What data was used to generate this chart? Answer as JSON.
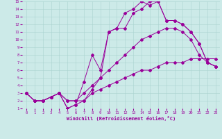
{
  "xlabel": "Windchill (Refroidissement éolien,°C)",
  "xlim": [
    -0.5,
    23.5
  ],
  "ylim": [
    1,
    15
  ],
  "xticks": [
    0,
    1,
    2,
    3,
    4,
    5,
    6,
    7,
    8,
    9,
    10,
    11,
    12,
    13,
    14,
    15,
    16,
    17,
    18,
    19,
    20,
    21,
    22,
    23
  ],
  "yticks": [
    1,
    2,
    3,
    4,
    5,
    6,
    7,
    8,
    9,
    10,
    11,
    12,
    13,
    14,
    15
  ],
  "line_color": "#990099",
  "bg_color": "#cceae8",
  "grid_color": "#aad4d0",
  "line1_x": [
    0,
    1,
    2,
    3,
    4,
    5,
    6,
    7,
    8,
    9,
    10,
    11,
    12,
    13,
    14,
    15,
    16,
    17,
    18,
    19,
    20,
    21,
    22,
    23
  ],
  "line1_y": [
    3,
    2,
    2,
    2.5,
    3,
    2,
    2,
    2,
    3,
    3.5,
    4,
    4.5,
    5,
    5.5,
    6,
    6,
    6.5,
    7,
    7,
    7,
    7.5,
    7.5,
    7.5,
    7.5
  ],
  "line2_x": [
    0,
    1,
    2,
    3,
    4,
    5,
    6,
    7,
    8,
    9,
    10,
    11,
    12,
    13,
    14,
    15,
    16,
    17,
    18,
    19,
    20,
    21,
    22,
    23
  ],
  "line2_y": [
    3,
    2,
    2,
    2.5,
    3,
    2,
    2,
    3,
    4,
    5,
    6,
    7,
    8,
    9,
    10,
    10.5,
    11,
    11.5,
    11.5,
    11,
    10,
    8,
    7,
    6.5
  ],
  "line3_x": [
    0,
    1,
    2,
    3,
    4,
    5,
    6,
    7,
    8,
    9,
    10,
    11,
    12,
    13,
    14,
    15,
    16,
    17,
    18,
    19,
    20,
    21,
    22,
    23
  ],
  "line3_y": [
    3,
    2,
    2,
    2.5,
    3,
    1,
    1.5,
    2,
    3.5,
    5,
    11,
    11.5,
    13.5,
    14,
    15,
    14.5,
    15,
    12.5,
    12.5,
    12,
    11,
    9.5,
    7,
    6.5
  ],
  "line4_x": [
    0,
    1,
    2,
    3,
    4,
    5,
    6,
    7,
    8,
    9,
    10,
    11,
    12,
    13,
    14,
    15,
    16,
    17,
    18,
    19,
    20,
    21,
    22,
    23
  ],
  "line4_y": [
    3,
    2,
    2,
    2.5,
    3,
    1,
    1.5,
    4.5,
    8,
    6,
    11,
    11.5,
    11.5,
    13.5,
    14,
    15,
    15,
    12.5,
    12.5,
    12,
    11,
    9.5,
    7,
    6.5
  ]
}
